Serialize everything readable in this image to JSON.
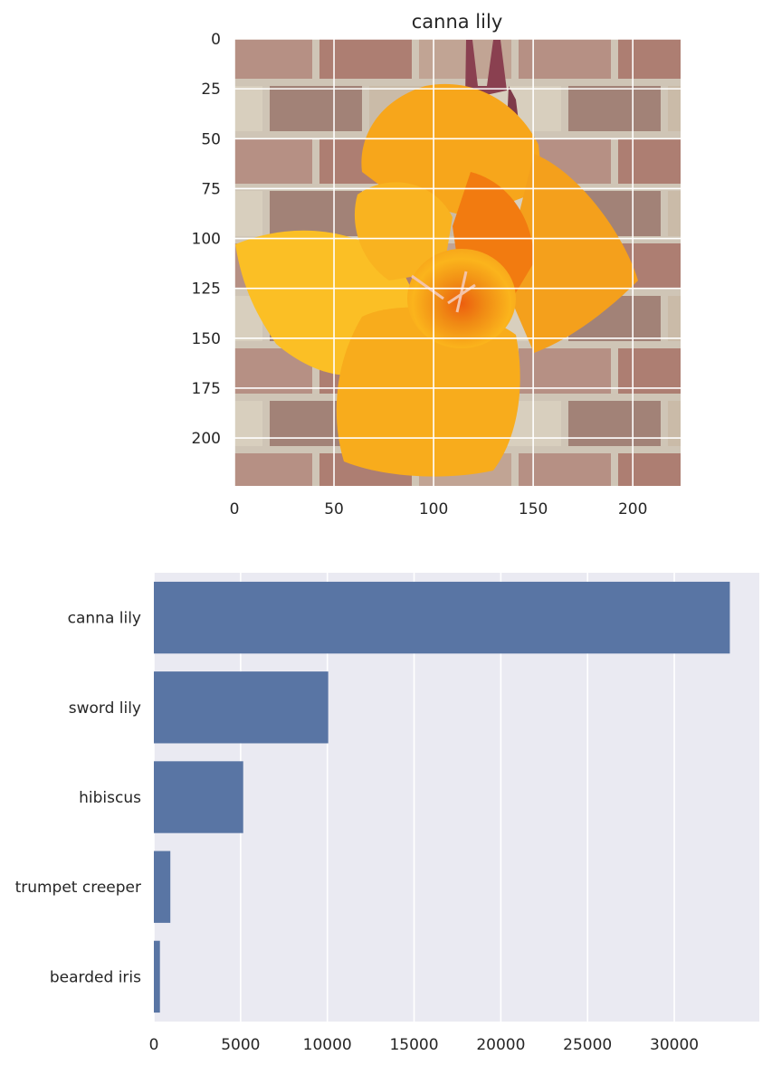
{
  "colors": {
    "bar": "#5975a4",
    "axes_bg": "#eaeaf2",
    "grid": "#ffffff",
    "brick": "#a07a6e",
    "mortar": "#d6cdbd",
    "petal_light": "#fbbb1e",
    "petal_mid": "#f6a11a",
    "petal_dark": "#f08a14",
    "center": "#ec5e0f",
    "bud": "#8a4050"
  },
  "chart_data": [
    {
      "type": "image",
      "title": "canna lily",
      "image_subject": "orange canna lily flower against a brick wall",
      "xlim": [
        0,
        224
      ],
      "ylim": [
        224,
        0
      ],
      "xticks": [
        0,
        50,
        100,
        150,
        200
      ],
      "yticks": [
        0,
        25,
        50,
        75,
        100,
        125,
        150,
        175,
        200
      ],
      "grid": true
    },
    {
      "type": "bar",
      "orientation": "horizontal",
      "categories": [
        "canna lily",
        "sword lily",
        "hibiscus",
        "trumpet creeper",
        "bearded iris"
      ],
      "values": [
        33200,
        10050,
        5150,
        950,
        350
      ],
      "xlim": [
        0,
        34900
      ],
      "xticks": [
        0,
        5000,
        10000,
        15000,
        20000,
        25000,
        30000
      ],
      "grid": true
    }
  ]
}
